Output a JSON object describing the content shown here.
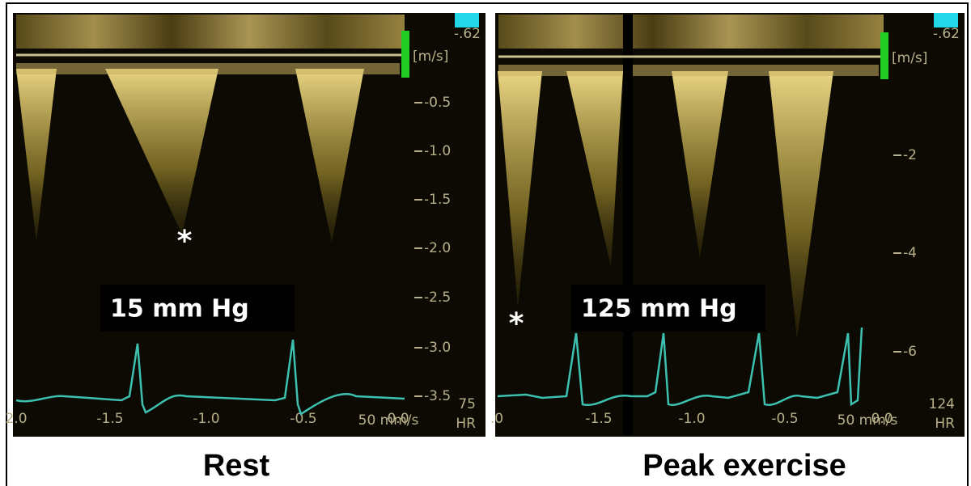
{
  "panels": [
    {
      "scale_label": "-.62",
      "unit": "[m/s]",
      "velocity_ticks": [
        "-0.5",
        "-1.0",
        "-1.5",
        "-2.0",
        "-2.5",
        "-3.0",
        "-3.5"
      ],
      "hr_value": "75",
      "hr_label": "HR",
      "time_ticks": [
        "2.0",
        "-1.5",
        "-1.0",
        "-0.5",
        "0.0"
      ],
      "sweep": "50 mm/s",
      "pressure": "15 mm Hg",
      "marker": "*",
      "caption": "Rest"
    },
    {
      "scale_label": "-.62",
      "unit": "[m/s]",
      "velocity_ticks": [
        "-2",
        "-4",
        "-6"
      ],
      "hr_value": "124",
      "hr_label": "HR",
      "time_ticks": [
        ".0",
        "-1.5",
        "-1.0",
        "-0.5",
        "0.0"
      ],
      "sweep": "50 mm/s",
      "pressure": "125 mm Hg",
      "marker": "*",
      "caption": "Peak exercise"
    }
  ]
}
